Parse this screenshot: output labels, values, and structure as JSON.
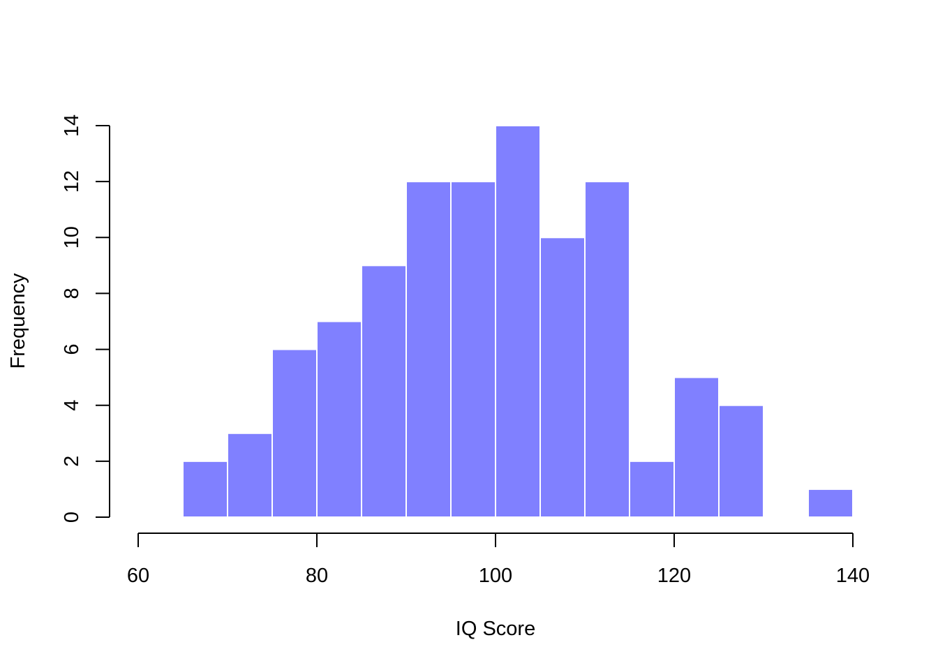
{
  "chart_data": {
    "type": "bar",
    "title": "",
    "xlabel": "IQ Score",
    "ylabel": "Frequency",
    "bins": [
      {
        "start": 65,
        "end": 70,
        "count": 2
      },
      {
        "start": 70,
        "end": 75,
        "count": 3
      },
      {
        "start": 75,
        "end": 80,
        "count": 6
      },
      {
        "start": 80,
        "end": 85,
        "count": 7
      },
      {
        "start": 85,
        "end": 90,
        "count": 9
      },
      {
        "start": 90,
        "end": 95,
        "count": 12
      },
      {
        "start": 95,
        "end": 100,
        "count": 12
      },
      {
        "start": 100,
        "end": 105,
        "count": 14
      },
      {
        "start": 105,
        "end": 110,
        "count": 10
      },
      {
        "start": 110,
        "end": 115,
        "count": 12
      },
      {
        "start": 115,
        "end": 120,
        "count": 2
      },
      {
        "start": 120,
        "end": 125,
        "count": 5
      },
      {
        "start": 125,
        "end": 130,
        "count": 4
      },
      {
        "start": 130,
        "end": 135,
        "count": 0
      },
      {
        "start": 135,
        "end": 140,
        "count": 1
      }
    ],
    "xlim": [
      60,
      140
    ],
    "ylim": [
      0,
      14
    ],
    "x_ticks": [
      60,
      80,
      100,
      120,
      140
    ],
    "y_ticks": [
      0,
      2,
      4,
      6,
      8,
      10,
      12,
      14
    ],
    "bar_color": "#8080ff",
    "bar_border_color": "#ffffff",
    "grid": false,
    "legend": "none"
  }
}
